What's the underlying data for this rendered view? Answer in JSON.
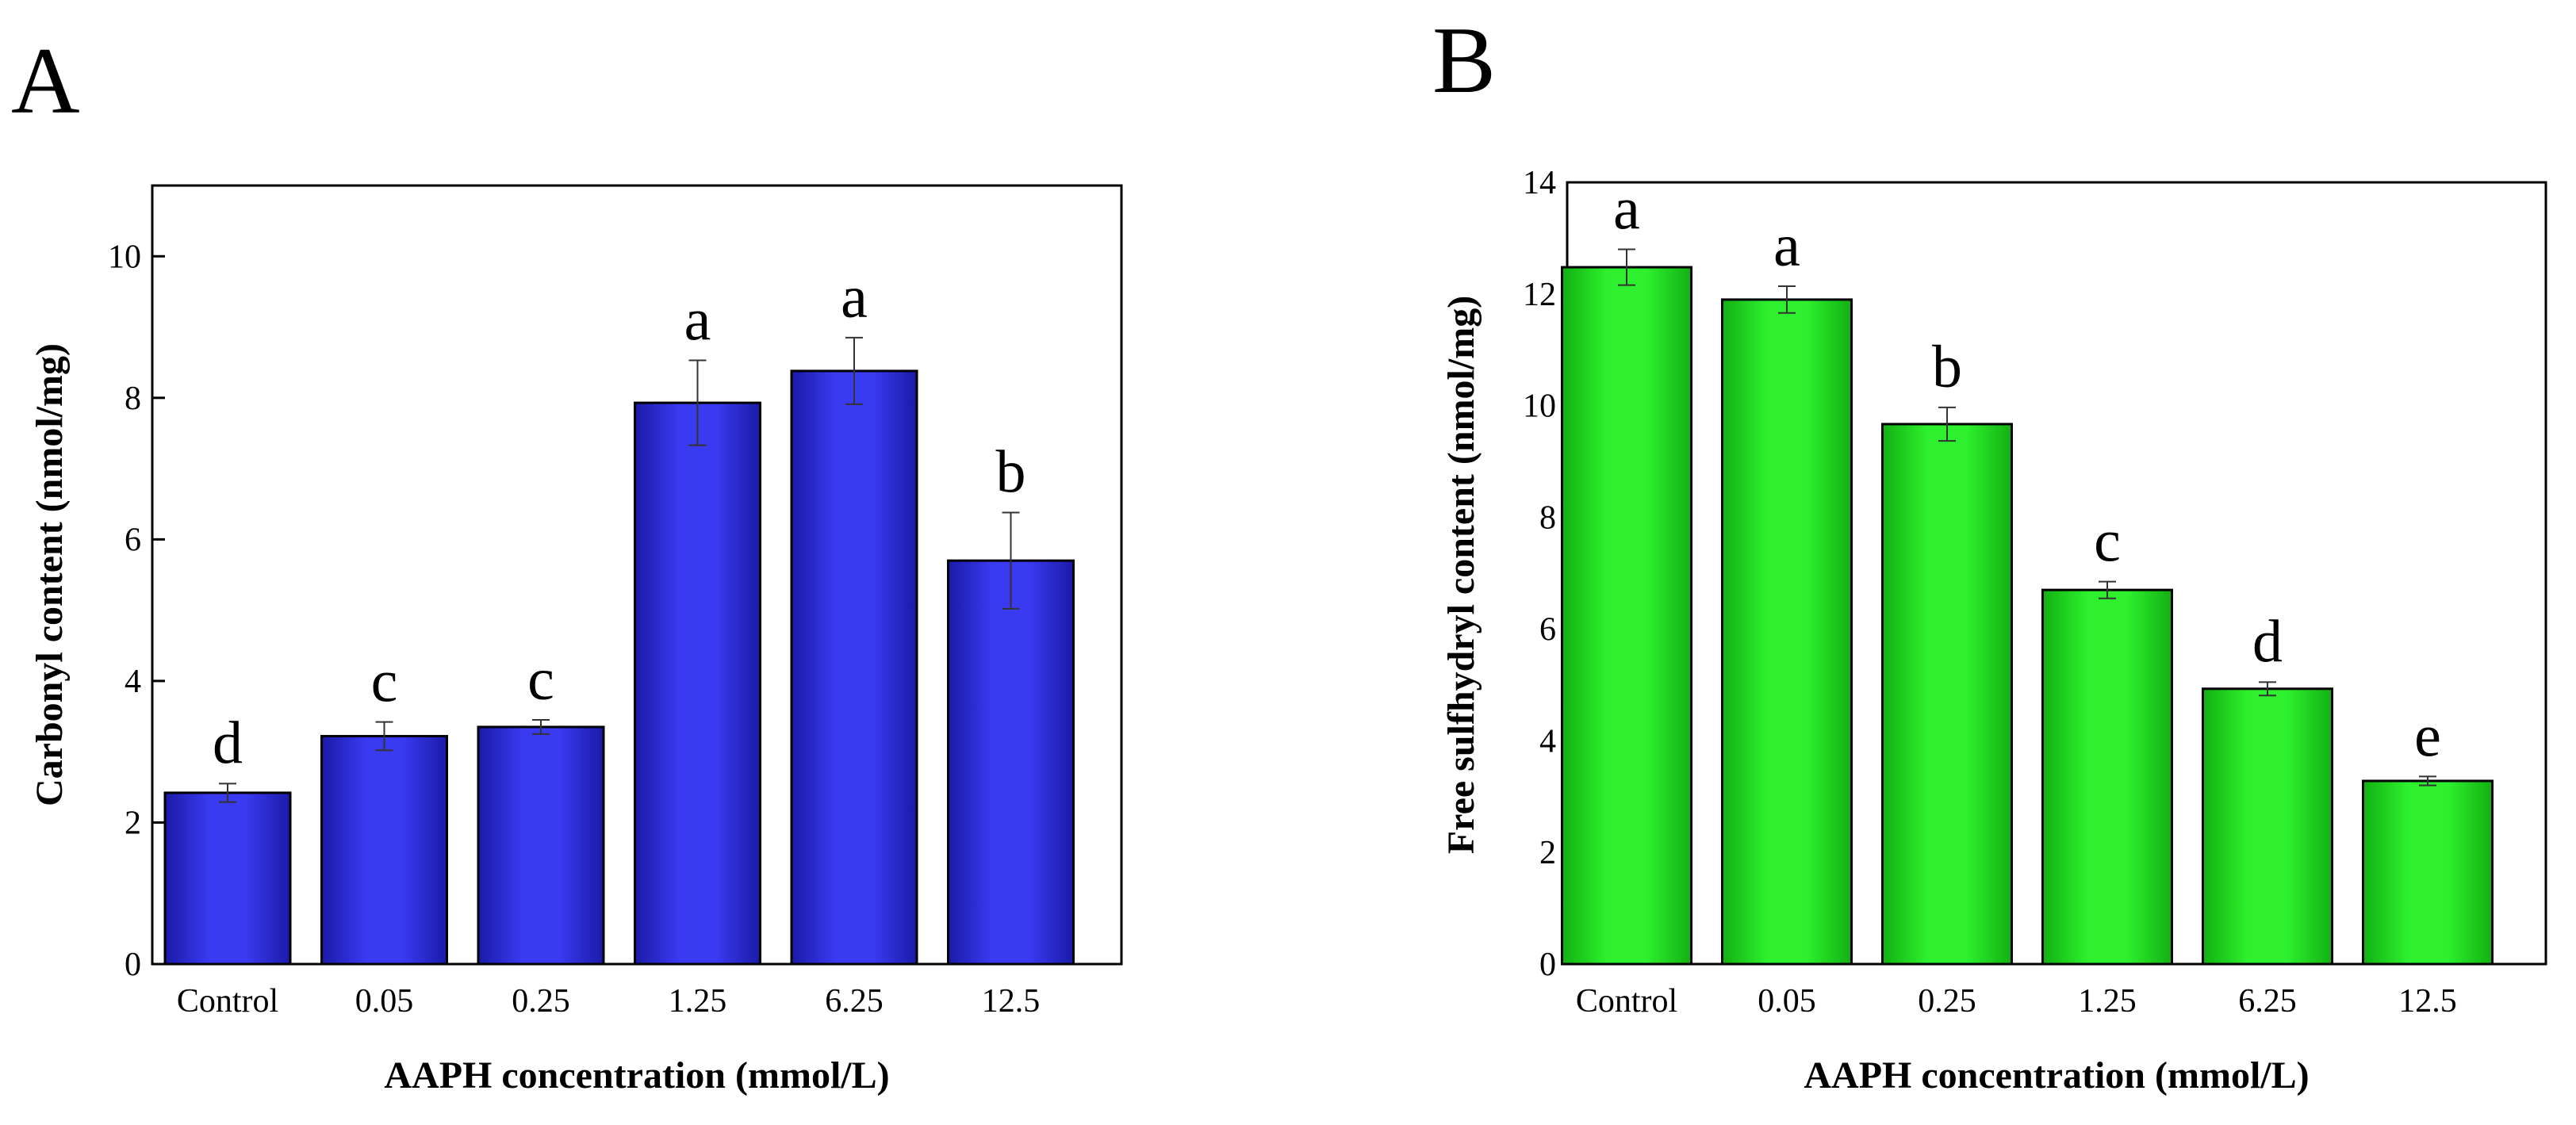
{
  "chart_data": [
    {
      "type": "bar",
      "panel": "A",
      "categories": [
        "Control",
        "0.05",
        "0.25",
        "1.25",
        "6.25",
        "12.5"
      ],
      "values": [
        2.42,
        3.22,
        3.35,
        7.93,
        8.38,
        5.7
      ],
      "errors": [
        0.13,
        0.2,
        0.1,
        0.6,
        0.47,
        0.68
      ],
      "letters": [
        "d",
        "c",
        "c",
        "a",
        "a",
        "b"
      ],
      "xlabel": "AAPH concentration (mmol/L)",
      "ylabel": "Carbonyl content (nmol/mg)",
      "ylim": [
        0,
        11
      ],
      "yticks": [
        0,
        2,
        4,
        6,
        8,
        10
      ],
      "bar_color": "#2b2bd9"
    },
    {
      "type": "bar",
      "panel": "B",
      "categories": [
        "Control",
        "0.05",
        "0.25",
        "1.25",
        "6.25",
        "12.5"
      ],
      "values": [
        12.48,
        11.9,
        9.67,
        6.7,
        4.93,
        3.28
      ],
      "errors": [
        0.32,
        0.24,
        0.3,
        0.15,
        0.12,
        0.08
      ],
      "letters": [
        "a",
        "a",
        "b",
        "c",
        "d",
        "e"
      ],
      "xlabel": "AAPH concentration (mmol/L)",
      "ylabel": "Free sulfhydryl content (nmol/mg)",
      "ylim": [
        0,
        14
      ],
      "yticks": [
        0,
        2,
        4,
        6,
        8,
        10,
        12,
        14
      ],
      "bar_color": "#1ee01e"
    }
  ]
}
